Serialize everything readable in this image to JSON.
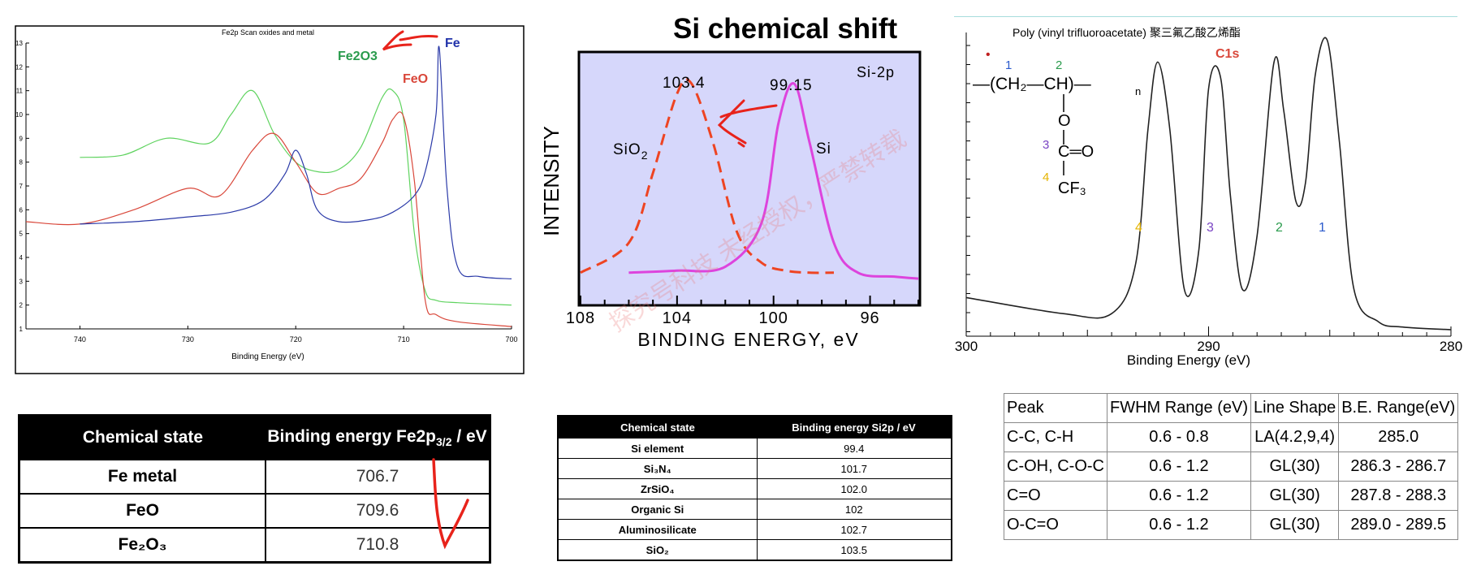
{
  "fe_chart": {
    "title": "Fe2p Scan oxides and metal",
    "xlabel": "Binding Energy (eV)",
    "x_ticks": [
      "740",
      "730",
      "720",
      "710",
      "700"
    ],
    "y_ticks": [
      "1",
      "2",
      "3",
      "4",
      "5",
      "6",
      "7",
      "8",
      "9",
      "10",
      "11",
      "12",
      "13"
    ],
    "labels": {
      "fe2o3": "Fe2O3",
      "feo": "FeO",
      "fe": "Fe"
    }
  },
  "si_chart": {
    "title": "Si chemical shift",
    "ylabel": "INTENSITY",
    "xlabel": "BINDING  ENERGY,  eV",
    "x_ticks": [
      "108",
      "104",
      "100",
      "96"
    ],
    "label_sio2": "SiO",
    "label_sio2_sub": "2",
    "label_si": "Si",
    "label_si2p": "Si-2p",
    "peak1": "103.4",
    "peak2": "99.15"
  },
  "c_chart": {
    "title": "Poly (vinyl trifluoroacetate) 聚三氟乙酸乙烯酯",
    "c1s": "C1s",
    "xlabel": "Binding Energy (eV)",
    "x_ticks": [
      "300",
      "290",
      "280"
    ],
    "peak_labels": [
      "4",
      "3",
      "2",
      "1"
    ],
    "structure": {
      "num1": "1",
      "num2": "2",
      "num3": "3",
      "num4": "4",
      "chain": "—(CH₂—CH)—",
      "sub_n": "n",
      "o": "O",
      "co": "C═O",
      "cf3": "CF₃",
      "dot": "•"
    }
  },
  "watermark": "探究号科技  未经授权，严禁转载",
  "fe_table": {
    "headers": [
      "Chemical state",
      "Binding energy Fe2p"
    ],
    "header_sub": "3/2",
    "header_suffix": " / eV",
    "rows": [
      {
        "state": "Fe metal",
        "value": "706.7"
      },
      {
        "state": "FeO",
        "value": "709.6"
      },
      {
        "state": "Fe₂O₃",
        "value": "710.8"
      }
    ]
  },
  "si_table": {
    "headers": [
      "Chemical state",
      "Binding energy Si2p / eV"
    ],
    "rows": [
      {
        "state": "Si element",
        "value": "99.4"
      },
      {
        "state": "Si₃N₄",
        "value": "101.7"
      },
      {
        "state": "ZrSiO₄",
        "value": "102.0"
      },
      {
        "state": "Organic Si",
        "value": "102"
      },
      {
        "state": "Aluminosilicate",
        "value": "102.7"
      },
      {
        "state": "SiO₂",
        "value": "103.5"
      }
    ]
  },
  "c_table": {
    "headers": [
      "Peak",
      "FWHM Range (eV)",
      "Line Shape",
      "B.E. Range(eV)"
    ],
    "rows": [
      {
        "peak": "C-C, C-H",
        "fwhm": "0.6 - 0.8",
        "shape": "LA(4.2,9,4)",
        "be": "285.0"
      },
      {
        "peak": "C-OH, C-O-C",
        "fwhm": "0.6 - 1.2",
        "shape": "GL(30)",
        "be": "286.3 - 286.7"
      },
      {
        "peak": "C=O",
        "fwhm": "0.6 - 1.2",
        "shape": "GL(30)",
        "be": "287.8 - 288.3"
      },
      {
        "peak": "O-C=O",
        "fwhm": "0.6 - 1.2",
        "shape": "GL(30)",
        "be": "289.0 - 289.5"
      }
    ]
  },
  "chart_data": [
    {
      "type": "line",
      "title": "Fe2p Scan oxides and metal",
      "xlabel": "Binding Energy (eV)",
      "ylabel": "",
      "xlim": [
        745,
        700
      ],
      "ylim": [
        1,
        13
      ],
      "grid": false,
      "series": [
        {
          "name": "Fe2O3",
          "color": "#5fd35f",
          "x": [
            740,
            736,
            732,
            728,
            726,
            724,
            722,
            720,
            718,
            716,
            714,
            712,
            711,
            710,
            709,
            708,
            707,
            705,
            700
          ],
          "y": [
            8.2,
            8.3,
            9.0,
            8.8,
            10.0,
            11.0,
            9.2,
            8.0,
            7.6,
            7.7,
            8.6,
            10.7,
            11.0,
            9.8,
            5.0,
            2.6,
            2.2,
            2.1,
            2.0
          ]
        },
        {
          "name": "FeO",
          "color": "#d9473a",
          "x": [
            745,
            740,
            735,
            730,
            727,
            724,
            722,
            720,
            718,
            716,
            714,
            712,
            711,
            710,
            709,
            708,
            707,
            705,
            700
          ],
          "y": [
            5.5,
            5.4,
            6.0,
            6.9,
            6.6,
            8.5,
            9.2,
            8.0,
            6.7,
            6.9,
            7.3,
            8.8,
            9.8,
            9.9,
            7.2,
            2.2,
            1.6,
            1.3,
            1.1
          ]
        },
        {
          "name": "Fe",
          "color": "#2b3aa8",
          "x": [
            740,
            735,
            730,
            726,
            723,
            721,
            720,
            719,
            718,
            716,
            713,
            711,
            709,
            708,
            707,
            706.7,
            706,
            705,
            703,
            700
          ],
          "y": [
            5.4,
            5.5,
            5.7,
            5.9,
            6.4,
            7.5,
            8.5,
            7.5,
            6.0,
            5.5,
            5.6,
            5.9,
            6.6,
            7.6,
            10.0,
            12.8,
            7.0,
            3.6,
            3.2,
            3.1
          ]
        }
      ]
    },
    {
      "type": "line",
      "title": "Si chemical shift",
      "xlabel": "BINDING  ENERGY,  eV",
      "ylabel": "INTENSITY",
      "xlim": [
        108,
        94
      ],
      "grid": false,
      "series": [
        {
          "name": "SiO2",
          "color": "#ee4422",
          "dashed": true,
          "x": [
            108,
            106,
            105,
            104,
            103.4,
            102.5,
            101.5,
            100.5,
            99.5,
            98.5,
            97.5
          ],
          "y": [
            0.05,
            0.2,
            0.55,
            0.95,
            1.0,
            0.7,
            0.25,
            0.1,
            0.06,
            0.05,
            0.05
          ]
        },
        {
          "name": "Si",
          "color": "#dd44dd",
          "x": [
            106,
            104,
            102,
            100.5,
            99.8,
            99.15,
            98.5,
            97.5,
            96.5,
            95,
            94
          ],
          "y": [
            0.05,
            0.06,
            0.08,
            0.3,
            0.8,
            1.0,
            0.7,
            0.2,
            0.05,
            0.03,
            0.02
          ]
        }
      ]
    },
    {
      "type": "line",
      "title": "Poly (vinyl trifluoroacetate) 聚三氟乙酸乙烯酯",
      "xlabel": "Binding Energy (eV)",
      "xlim": [
        300,
        280
      ],
      "grid": false,
      "series": [
        {
          "name": "C1s",
          "color": "#222222",
          "x": [
            300,
            296,
            294,
            293,
            292.5,
            292.1,
            291.6,
            291,
            290.4,
            290,
            289.5,
            289.1,
            288.6,
            288,
            287.3,
            286.9,
            286.4,
            286,
            285.6,
            285.1,
            284.6,
            284,
            283,
            282,
            280
          ],
          "y": [
            0.12,
            0.06,
            0.06,
            0.25,
            0.75,
            1.0,
            0.75,
            0.15,
            0.3,
            0.9,
            0.94,
            0.5,
            0.15,
            0.35,
            1.0,
            0.82,
            0.48,
            0.55,
            0.95,
            1.08,
            0.7,
            0.15,
            0.03,
            0.01,
            0.0
          ]
        }
      ]
    }
  ]
}
